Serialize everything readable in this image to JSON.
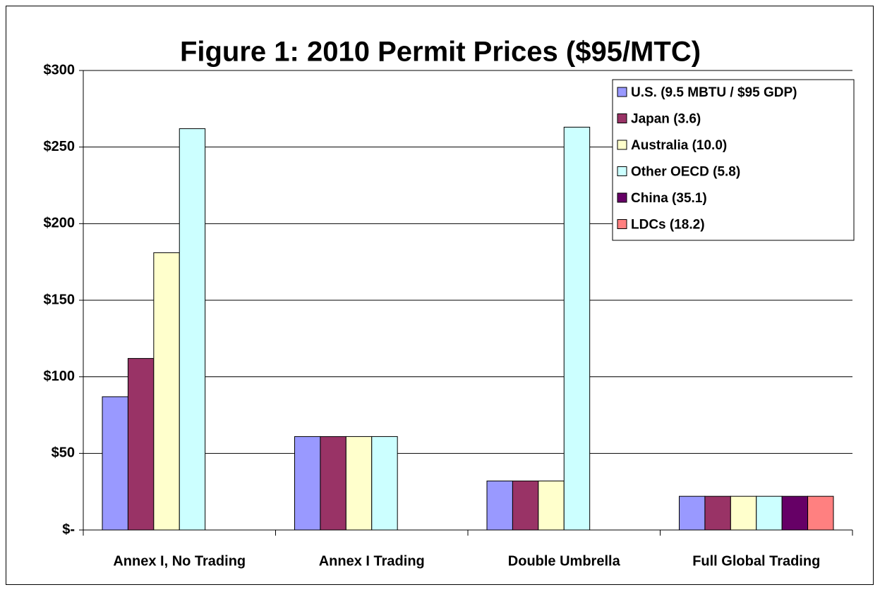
{
  "chart_data": {
    "type": "bar",
    "title": "Figure 1: 2010 Permit Prices ($95/MTC)",
    "categories": [
      "Annex I, No Trading",
      "Annex I Trading",
      "Double Umbrella",
      "Full Global Trading"
    ],
    "series": [
      {
        "name": "U.S. (9.5 MBTU / $95 GDP)",
        "color": "#9999ff",
        "values": [
          87,
          61,
          32,
          22
        ]
      },
      {
        "name": "Japan (3.6)",
        "color": "#993366",
        "values": [
          112,
          61,
          32,
          22
        ]
      },
      {
        "name": "Australia (10.0)",
        "color": "#ffffcc",
        "values": [
          181,
          61,
          32,
          22
        ]
      },
      {
        "name": "Other OECD (5.8)",
        "color": "#ccffff",
        "values": [
          262,
          61,
          263,
          22
        ]
      },
      {
        "name": "China (35.1)",
        "color": "#660066",
        "values": [
          null,
          null,
          null,
          22
        ]
      },
      {
        "name": "LDCs (18.2)",
        "color": "#ff8080",
        "values": [
          null,
          null,
          null,
          22
        ]
      }
    ],
    "ylim": [
      0,
      300
    ],
    "yticks": [
      {
        "value": 0,
        "label": "$-"
      },
      {
        "value": 50,
        "label": "$50"
      },
      {
        "value": 100,
        "label": "$100"
      },
      {
        "value": 150,
        "label": "$150"
      },
      {
        "value": 200,
        "label": "$200"
      },
      {
        "value": 250,
        "label": "$250"
      },
      {
        "value": 300,
        "label": "$300"
      }
    ],
    "grid": true,
    "legend": "upper right"
  }
}
